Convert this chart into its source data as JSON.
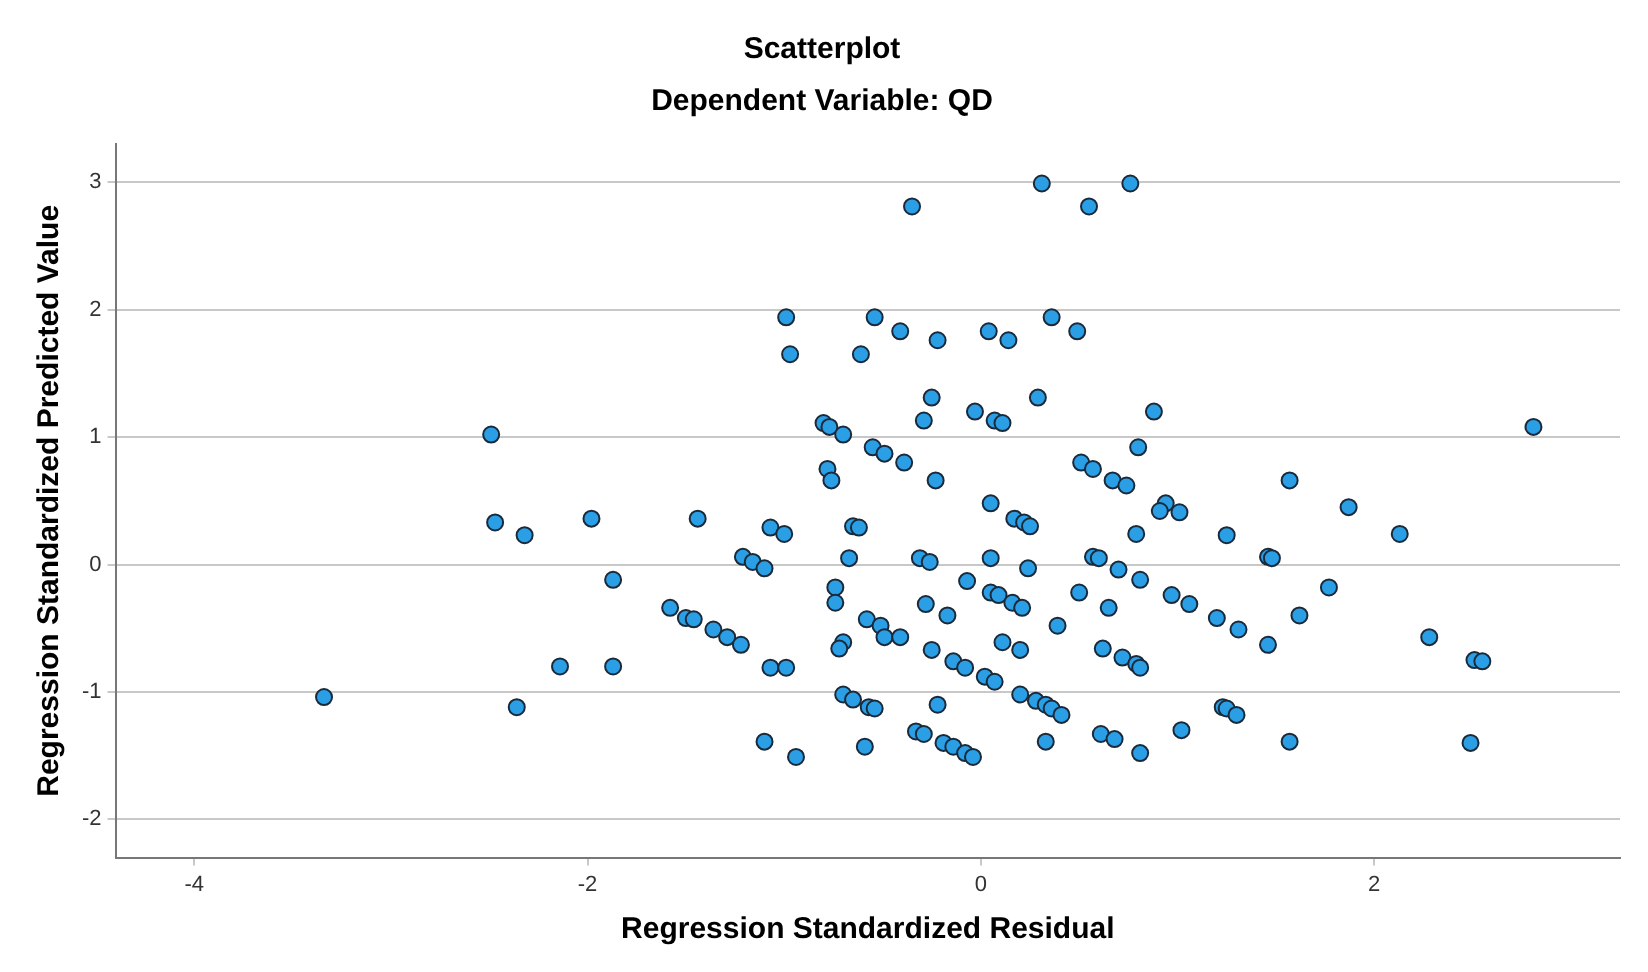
{
  "chart_data": {
    "type": "scatter",
    "title": "Scatterplot",
    "subtitle": "Dependent Variable: QD",
    "xlabel": "Regression Standardized Residual",
    "ylabel": "Regression Standardized Predicted Value",
    "xlim": [
      -4.4,
      3.25
    ],
    "ylim": [
      -2.3,
      3.3
    ],
    "xticks": [
      -4,
      -2,
      0,
      2
    ],
    "yticks": [
      -2,
      -1,
      0,
      1,
      2,
      3
    ],
    "grid": "y",
    "marker": "circle",
    "series": [
      {
        "color": "#2b9fe6",
        "x": [
          0.31,
          -0.35,
          0.55,
          0.76,
          -0.99,
          -0.54,
          -0.41,
          -0.22,
          0.04,
          0.14,
          0.36,
          0.49,
          -0.97,
          -0.61,
          -0.25,
          -0.29,
          -0.03,
          0.07,
          0.11,
          0.29,
          -0.8,
          -0.77,
          -0.7,
          -0.55,
          -0.49,
          -0.39,
          -0.23,
          -0.78,
          -0.76,
          0.51,
          0.57,
          0.67,
          0.74,
          0.05,
          0.88,
          2.81,
          0.8,
          1.57,
          0.94,
          1.87,
          -2.49,
          -2.47,
          -2.32,
          -1.98,
          -1.87,
          -2.14,
          -1.87,
          -3.34,
          -2.36,
          -1.44,
          -1.07,
          -1.0,
          -0.65,
          -0.62,
          0.17,
          0.22,
          0.25,
          -1.21,
          -1.16,
          -1.1,
          -0.67,
          -0.31,
          -0.26,
          0.05,
          0.24,
          0.57,
          0.6,
          0.7,
          -0.74,
          -0.74,
          -0.28,
          -0.17,
          -0.07,
          0.05,
          0.09,
          0.16,
          0.21,
          0.5,
          0.65,
          -1.58,
          -1.5,
          -1.46,
          -1.36,
          -1.29,
          -1.22,
          -0.58,
          -0.51,
          -0.49,
          -0.41,
          -0.7,
          -0.72,
          -0.25,
          0.39,
          0.11,
          0.2,
          0.62,
          0.72,
          -1.07,
          -0.99,
          -0.14,
          -0.08,
          0.02,
          0.07,
          -0.7,
          -0.65,
          -0.57,
          -0.54,
          -0.22,
          0.2,
          0.28,
          0.33,
          0.36,
          0.41,
          -0.33,
          -0.29,
          -0.19,
          -0.14,
          -0.08,
          -0.04,
          -1.1,
          -0.94,
          -0.59,
          0.33,
          0.61,
          0.68,
          0.91,
          1.01,
          0.79,
          1.25,
          2.13,
          1.46,
          1.48,
          0.81,
          0.97,
          1.06,
          1.2,
          1.31,
          1.46,
          1.62,
          1.77,
          2.28,
          0.79,
          0.81,
          2.51,
          2.55,
          1.23,
          1.25,
          1.3,
          1.02,
          1.57,
          2.49,
          0.81
        ],
        "values": [
          2.99,
          2.81,
          2.81,
          2.99,
          1.94,
          1.94,
          1.83,
          1.76,
          1.83,
          1.76,
          1.94,
          1.83,
          1.65,
          1.65,
          1.31,
          1.13,
          1.2,
          1.13,
          1.11,
          1.31,
          1.11,
          1.08,
          1.02,
          0.92,
          0.87,
          0.8,
          0.66,
          0.75,
          0.66,
          0.8,
          0.75,
          0.66,
          0.62,
          0.48,
          1.2,
          1.08,
          0.92,
          0.66,
          0.48,
          0.45,
          1.02,
          0.33,
          0.23,
          0.36,
          -0.12,
          -0.8,
          -0.8,
          -1.04,
          -1.12,
          0.36,
          0.29,
          0.24,
          0.3,
          0.29,
          0.36,
          0.33,
          0.3,
          0.06,
          0.02,
          -0.03,
          0.05,
          0.05,
          0.02,
          0.05,
          -0.03,
          0.06,
          0.05,
          -0.04,
          -0.18,
          -0.3,
          -0.31,
          -0.4,
          -0.13,
          -0.22,
          -0.24,
          -0.3,
          -0.34,
          -0.22,
          -0.34,
          -0.34,
          -0.42,
          -0.43,
          -0.51,
          -0.57,
          -0.63,
          -0.43,
          -0.48,
          -0.57,
          -0.57,
          -0.61,
          -0.66,
          -0.67,
          -0.48,
          -0.61,
          -0.67,
          -0.66,
          -0.73,
          -0.81,
          -0.81,
          -0.76,
          -0.81,
          -0.88,
          -0.92,
          -1.02,
          -1.06,
          -1.12,
          -1.13,
          -1.1,
          -1.02,
          -1.07,
          -1.1,
          -1.13,
          -1.18,
          -1.31,
          -1.33,
          -1.4,
          -1.43,
          -1.48,
          -1.51,
          -1.39,
          -1.51,
          -1.43,
          -1.39,
          -1.33,
          -1.37,
          0.42,
          0.41,
          0.24,
          0.23,
          0.24,
          0.06,
          0.05,
          -0.12,
          -0.24,
          -0.31,
          -0.42,
          -0.51,
          -0.63,
          -0.4,
          -0.18,
          -0.57,
          -0.78,
          -0.81,
          -0.75,
          -0.76,
          -1.12,
          -1.13,
          -1.18,
          -1.3,
          -1.39,
          -1.4,
          -1.48
        ]
      }
    ]
  }
}
